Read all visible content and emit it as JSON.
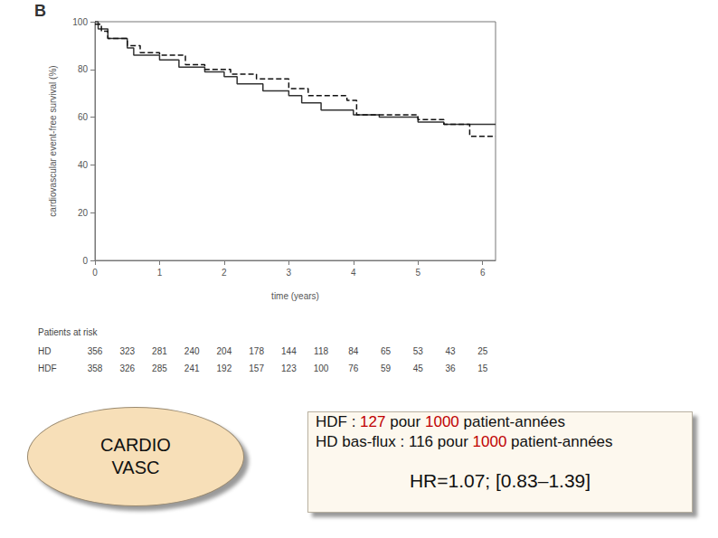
{
  "chart_data": {
    "type": "line",
    "panel_label": "B",
    "x_label": "time (years)",
    "y_label": "cardiovascular event-free survival (%)",
    "xlim": [
      0,
      6.2
    ],
    "xticks": [
      0,
      1,
      2,
      3,
      4,
      5,
      6
    ],
    "ylim": [
      0,
      100
    ],
    "yticks": [
      0,
      20,
      40,
      60,
      80,
      100
    ],
    "grid": false,
    "series": [
      {
        "color": "#333333",
        "line_style": "solid",
        "x": [
          0,
          0.05,
          0.2,
          0.5,
          0.6,
          1.0,
          1.3,
          1.7,
          2.0,
          2.2,
          2.6,
          3.0,
          3.2,
          3.5,
          4.0,
          4.4,
          5.0,
          5.4,
          6.2
        ],
        "values": [
          100,
          97,
          93,
          89,
          86,
          84,
          81,
          79,
          77,
          74,
          71,
          69,
          66,
          63,
          61,
          60,
          58,
          57,
          57
        ]
      },
      {
        "color": "#111111",
        "line_style": "dashed",
        "x": [
          0,
          0.1,
          0.2,
          0.5,
          0.7,
          1.0,
          1.4,
          1.7,
          2.1,
          2.5,
          3.0,
          3.3,
          3.9,
          4.05,
          4.5,
          5.0,
          5.4,
          5.8,
          6.2
        ],
        "values": [
          99,
          96,
          93,
          90,
          87,
          86,
          82,
          80,
          78,
          76,
          72,
          69,
          67,
          61,
          61,
          59,
          57,
          52,
          52
        ]
      }
    ],
    "risk_table": {
      "title": "Patients at risk",
      "times": [
        0,
        0.5,
        1,
        1.5,
        2,
        2.5,
        3,
        3.5,
        4,
        4.5,
        5,
        5.5,
        6
      ],
      "rows": [
        {
          "label": "HD",
          "values": [
            356,
            323,
            281,
            240,
            204,
            178,
            144,
            118,
            84,
            65,
            53,
            43,
            25
          ]
        },
        {
          "label": "HDF",
          "values": [
            358,
            326,
            285,
            241,
            192,
            157,
            123,
            100,
            76,
            59,
            45,
            36,
            15
          ]
        }
      ]
    },
    "badge": [
      "CARDIO",
      "VASC"
    ],
    "annotation": {
      "lines": [
        [
          {
            "text": "HDF : "
          },
          {
            "text": "127",
            "color": "#c00000"
          },
          {
            "text": " pour "
          },
          {
            "text": "1000",
            "color": "#c00000"
          },
          {
            "text": " patient-années"
          }
        ],
        [
          {
            "text": "HD bas-flux : 116  pour "
          },
          {
            "text": "1000",
            "color": "#c00000"
          },
          {
            "text": " patient-années"
          }
        ]
      ],
      "hr": "HR=1.07; [0.83–1.39]"
    }
  }
}
